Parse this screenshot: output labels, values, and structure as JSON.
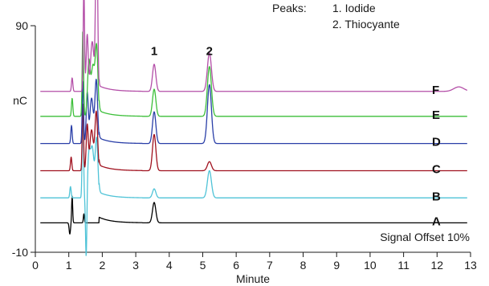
{
  "chart_data": {
    "type": "line",
    "title": "",
    "xlabel": "Minute",
    "ylabel": "nC",
    "xlim": [
      0,
      13
    ],
    "ylim": [
      -10,
      90
    ],
    "x_ticks": [
      "0",
      "1",
      "2",
      "3",
      "4",
      "5",
      "6",
      "7",
      "8",
      "9",
      "10",
      "11",
      "12",
      "13"
    ],
    "y_ticks": [
      "90",
      "-10"
    ],
    "legend": {
      "heading": "Peaks:",
      "items": [
        "1. Iodide",
        "2. Thiocyante"
      ]
    },
    "peak_labels": [
      {
        "text": "1",
        "x": 3.55
      },
      {
        "text": "2",
        "x": 5.2
      }
    ],
    "note": "Signal Offset 10%",
    "series": [
      {
        "name": "A",
        "color": "#000000",
        "baseline": 3,
        "events": [
          [
            1.03,
            -5,
            0.02
          ],
          [
            1.1,
            12,
            0.015
          ],
          [
            1.45,
            4,
            0.015
          ],
          [
            3.55,
            9,
            0.05
          ]
        ]
      },
      {
        "name": "B",
        "color": "#4fc3d7",
        "baseline": 14,
        "events": [
          [
            1.05,
            5,
            0.02
          ],
          [
            1.42,
            40,
            0.02
          ],
          [
            1.52,
            -28,
            0.02
          ],
          [
            1.6,
            18,
            0.04
          ],
          [
            1.7,
            22,
            0.05
          ],
          [
            1.83,
            26,
            0.04
          ],
          [
            3.55,
            4,
            0.05
          ],
          [
            5.2,
            12,
            0.06
          ]
        ]
      },
      {
        "name": "C",
        "color": "#a0111e",
        "baseline": 26,
        "events": [
          [
            1.07,
            6,
            0.02
          ],
          [
            1.42,
            30,
            0.02
          ],
          [
            1.55,
            20,
            0.03
          ],
          [
            1.68,
            18,
            0.05
          ],
          [
            1.82,
            26,
            0.04
          ],
          [
            3.55,
            16,
            0.05
          ],
          [
            5.2,
            4,
            0.06
          ]
        ]
      },
      {
        "name": "D",
        "color": "#2a3fa8",
        "baseline": 38,
        "events": [
          [
            1.08,
            8,
            0.02
          ],
          [
            1.42,
            28,
            0.02
          ],
          [
            1.55,
            22,
            0.03
          ],
          [
            1.68,
            20,
            0.05
          ],
          [
            1.82,
            28,
            0.04
          ],
          [
            3.55,
            14,
            0.05
          ],
          [
            5.2,
            26,
            0.06
          ]
        ]
      },
      {
        "name": "E",
        "color": "#3dbf3a",
        "baseline": 50,
        "events": [
          [
            1.1,
            8,
            0.02
          ],
          [
            1.42,
            38,
            0.02
          ],
          [
            1.6,
            24,
            0.04
          ],
          [
            1.72,
            22,
            0.05
          ],
          [
            1.83,
            30,
            0.04
          ],
          [
            3.55,
            12,
            0.05
          ],
          [
            5.2,
            22,
            0.06
          ]
        ]
      },
      {
        "name": "F",
        "color": "#b44fa8",
        "baseline": 61,
        "events": [
          [
            1.1,
            6,
            0.02
          ],
          [
            1.45,
            46,
            0.02
          ],
          [
            1.55,
            25,
            0.03
          ],
          [
            1.7,
            22,
            0.05
          ],
          [
            1.83,
            78,
            0.03
          ],
          [
            3.55,
            12,
            0.05
          ],
          [
            5.2,
            17,
            0.06
          ],
          [
            12.65,
            2,
            0.15
          ]
        ]
      }
    ]
  }
}
